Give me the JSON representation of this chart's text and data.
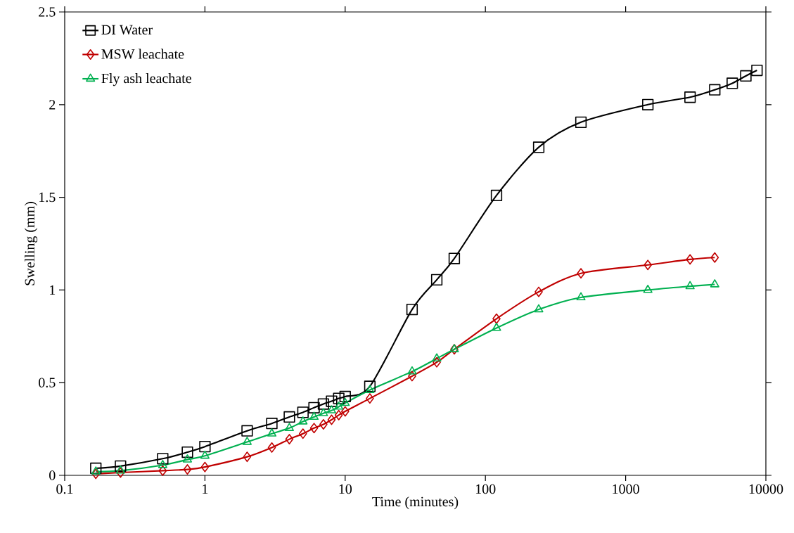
{
  "chart_data": {
    "type": "line",
    "xlabel": "Time (minutes)",
    "ylabel": "Swelling (mm)",
    "log": "x",
    "x": [
      0.1667,
      0.25,
      0.5,
      0.75,
      1,
      2,
      3,
      4,
      5,
      6,
      7,
      8,
      9,
      10,
      15,
      30,
      45,
      60,
      120,
      240,
      480,
      1440,
      2880,
      4320,
      5760,
      7200,
      8640
    ],
    "xlim": [
      0.1,
      10000
    ],
    "xticks": [
      0.1,
      1,
      10,
      100,
      1000,
      10000
    ],
    "ylim": [
      0,
      2.5
    ],
    "yticks": [
      0,
      0.5,
      1,
      1.5,
      2,
      2.5
    ],
    "legend": "top left",
    "series": [
      {
        "name": "DI Water",
        "color": "#000000",
        "marker": "square",
        "values": [
          0.038,
          0.05,
          0.09,
          0.125,
          0.155,
          0.24,
          0.28,
          0.315,
          0.34,
          0.365,
          0.385,
          0.4,
          0.415,
          0.425,
          0.48,
          0.895,
          1.055,
          1.17,
          1.51,
          1.77,
          1.905,
          2.0,
          2.04,
          2.08,
          2.115,
          2.155,
          2.185
        ]
      },
      {
        "name": "MSW leachate",
        "color": "#c00000",
        "marker": "diamond",
        "values": [
          0.008,
          0.015,
          0.025,
          0.032,
          0.045,
          0.1,
          0.15,
          0.195,
          0.225,
          0.255,
          0.275,
          0.3,
          0.325,
          0.345,
          0.415,
          0.535,
          0.61,
          0.68,
          0.845,
          0.99,
          1.09,
          1.135,
          1.165,
          1.175,
          null,
          null,
          null
        ]
      },
      {
        "name": "Fly ash leachate",
        "color": "#00b050",
        "marker": "triangle",
        "values": [
          0.02,
          0.025,
          0.055,
          0.085,
          0.105,
          0.18,
          0.225,
          0.255,
          0.29,
          0.315,
          0.335,
          0.35,
          0.37,
          0.39,
          0.46,
          0.56,
          0.63,
          0.68,
          0.795,
          0.895,
          0.96,
          1.0,
          1.02,
          1.03,
          null,
          null,
          null
        ]
      }
    ]
  }
}
